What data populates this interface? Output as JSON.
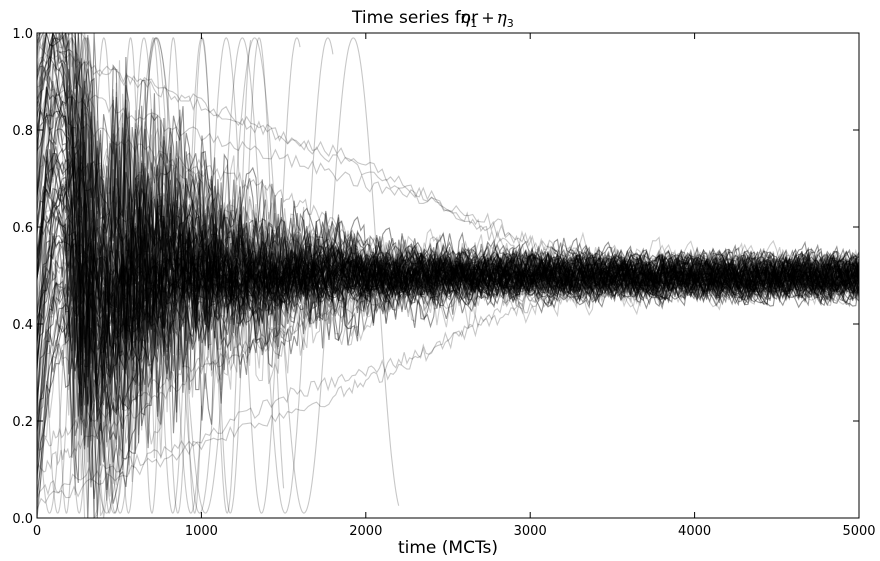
{
  "chart_data": {
    "type": "line",
    "title": "Time series for ",
    "title_math": {
      "eta": "η",
      "sub1": "1",
      "plus": "+",
      "sub3": "3"
    },
    "xlabel": "time (MCTs)",
    "ylabel": "",
    "xlim": [
      0,
      5000
    ],
    "ylim": [
      0.0,
      1.0
    ],
    "xticks": [
      0,
      1000,
      2000,
      3000,
      4000,
      5000
    ],
    "xtick_labels": [
      "0",
      "1000",
      "2000",
      "3000",
      "4000",
      "5000"
    ],
    "yticks": [
      0.0,
      0.2,
      0.4,
      0.6,
      0.8,
      1.0
    ],
    "ytick_labels": [
      "0.0",
      "0.2",
      "0.4",
      "0.6",
      "0.8",
      "1.0"
    ],
    "grid": false,
    "legend": "none",
    "line_color": "#000000",
    "line_alpha": 0.18,
    "description_series": {
      "count": 100,
      "equilibrium_value": 0.5,
      "noise_amplitude": 0.03
    },
    "series": [
      {
        "x": [
          0,
          300,
          800,
          1400,
          2000,
          2600,
          3000,
          3600,
          4200,
          5000
        ],
        "y": [
          0.98,
          0.93,
          0.88,
          0.8,
          0.73,
          0.62,
          0.53,
          0.5,
          0.5,
          0.5
        ]
      },
      {
        "x": [
          0,
          400,
          900,
          1500,
          2100,
          2700,
          3200,
          3800,
          5000
        ],
        "y": [
          0.96,
          0.93,
          0.86,
          0.79,
          0.7,
          0.62,
          0.54,
          0.5,
          0.5
        ]
      },
      {
        "x": [
          0,
          500,
          1100,
          1700,
          2300,
          2900,
          3300,
          3700,
          5000
        ],
        "y": [
          0.9,
          0.84,
          0.78,
          0.72,
          0.66,
          0.58,
          0.54,
          0.5,
          0.5
        ]
      },
      {
        "x": [
          0,
          400,
          900,
          1500,
          2000,
          2400,
          2800,
          3200,
          5000
        ],
        "y": [
          0.05,
          0.1,
          0.15,
          0.25,
          0.3,
          0.35,
          0.43,
          0.48,
          0.5
        ]
      },
      {
        "x": [
          0,
          600,
          1200,
          1800,
          2200,
          2600,
          3000,
          3400,
          5000
        ],
        "y": [
          0.03,
          0.1,
          0.18,
          0.25,
          0.31,
          0.38,
          0.44,
          0.49,
          0.5
        ]
      },
      {
        "x": [
          0,
          300,
          700,
          1000,
          1400,
          1800,
          2200,
          2600,
          5000
        ],
        "y": [
          0.15,
          0.2,
          0.27,
          0.32,
          0.37,
          0.42,
          0.45,
          0.48,
          0.5
        ]
      },
      {
        "x": [
          0,
          200,
          700,
          1200,
          1600,
          2000,
          2400,
          5000
        ],
        "y": [
          0.85,
          0.82,
          0.75,
          0.7,
          0.65,
          0.57,
          0.52,
          0.5
        ]
      },
      {
        "x": [
          0,
          250,
          600,
          1000,
          1400,
          1800,
          2300,
          5000
        ],
        "y": [
          0.1,
          0.15,
          0.22,
          0.3,
          0.37,
          0.43,
          0.48,
          0.5
        ]
      }
    ],
    "oscillating_series": [
      {
        "period": 430,
        "decay_at": 1600
      },
      {
        "period": 520,
        "decay_at": 1800
      },
      {
        "period": 350,
        "decay_at": 1500
      },
      {
        "period": 600,
        "decay_at": 2200
      },
      {
        "period": 300,
        "decay_at": 1300
      },
      {
        "period": 260,
        "decay_at": 1000
      }
    ]
  }
}
